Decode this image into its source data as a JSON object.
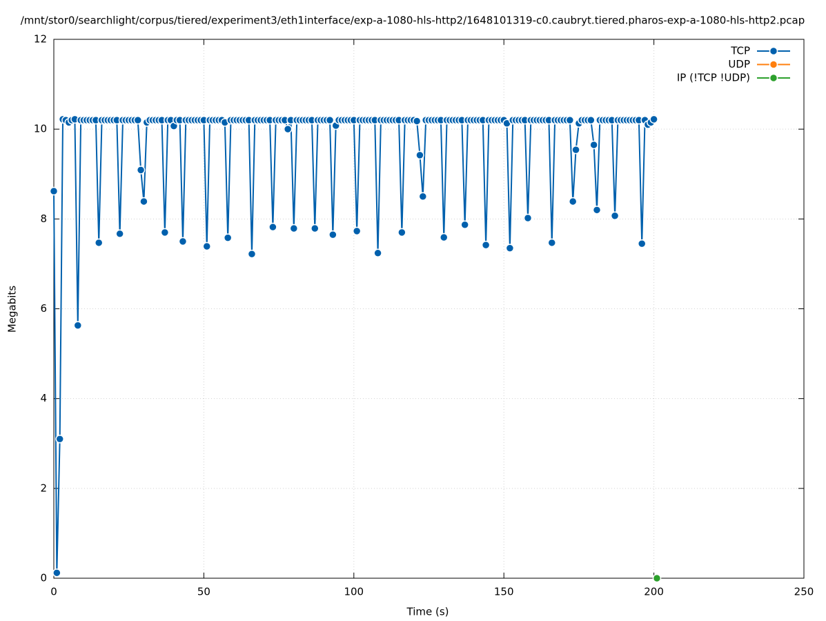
{
  "chart_data": {
    "type": "line",
    "title": "/mnt/stor0/searchlight/corpus/tiered/experiment3/eth1interface/exp-a-1080-hls-http2/1648101319-c0.caubryt.tiered.pharos-exp-a-1080-hls-http2.pcap",
    "xlabel": "Time (s)",
    "ylabel": "Megabits",
    "xlim": [
      0,
      250
    ],
    "xticks": [
      0,
      50,
      100,
      150,
      200,
      250
    ],
    "ylim": [
      0,
      12
    ],
    "yticks": [
      0,
      2,
      4,
      6,
      8,
      10,
      12
    ],
    "grid": true,
    "legend": "top-right",
    "series": [
      {
        "name": "TCP",
        "color": "#0060ad",
        "x": [
          0,
          1,
          2,
          3,
          4,
          5,
          6,
          7,
          8,
          9,
          10,
          11,
          12,
          13,
          14,
          15,
          16,
          17,
          18,
          19,
          20,
          21,
          22,
          23,
          24,
          25,
          26,
          27,
          28,
          29,
          30,
          31,
          32,
          33,
          34,
          35,
          36,
          37,
          38,
          39,
          40,
          41,
          42,
          43,
          44,
          45,
          46,
          47,
          48,
          49,
          50,
          51,
          52,
          53,
          54,
          55,
          56,
          57,
          58,
          59,
          60,
          61,
          62,
          63,
          64,
          65,
          66,
          67,
          68,
          69,
          70,
          71,
          72,
          73,
          74,
          75,
          76,
          77,
          78,
          79,
          80,
          81,
          82,
          83,
          84,
          85,
          86,
          87,
          88,
          89,
          90,
          91,
          92,
          93,
          94,
          95,
          96,
          97,
          98,
          99,
          100,
          101,
          102,
          103,
          104,
          105,
          106,
          107,
          108,
          109,
          110,
          111,
          112,
          113,
          114,
          115,
          116,
          117,
          118,
          119,
          120,
          121,
          122,
          123,
          124,
          125,
          126,
          127,
          128,
          129,
          130,
          131,
          132,
          133,
          134,
          135,
          136,
          137,
          138,
          139,
          140,
          141,
          142,
          143,
          144,
          145,
          146,
          147,
          148,
          149,
          150,
          151,
          152,
          153,
          154,
          155,
          156,
          157,
          158,
          159,
          160,
          161,
          162,
          163,
          164,
          165,
          166,
          167,
          168,
          169,
          170,
          171,
          172,
          173,
          174,
          175,
          176,
          177,
          178,
          179,
          180,
          181,
          182,
          183,
          184,
          185,
          186,
          187,
          188,
          189,
          190,
          191,
          192,
          193,
          194,
          195,
          196,
          197,
          198,
          199,
          200
        ],
        "values": [
          8.62,
          0.12,
          3.1,
          10.22,
          10.2,
          10.15,
          10.2,
          10.22,
          5.63,
          10.2,
          10.2,
          10.2,
          10.2,
          10.2,
          10.2,
          7.47,
          10.2,
          10.2,
          10.2,
          10.2,
          10.2,
          10.2,
          7.67,
          10.2,
          10.2,
          10.2,
          10.2,
          10.2,
          10.2,
          9.09,
          8.39,
          10.15,
          10.2,
          10.2,
          10.2,
          10.2,
          10.2,
          7.7,
          10.2,
          10.2,
          10.07,
          10.2,
          10.2,
          7.5,
          10.2,
          10.2,
          10.2,
          10.2,
          10.2,
          10.2,
          10.2,
          7.39,
          10.2,
          10.2,
          10.2,
          10.2,
          10.2,
          10.15,
          7.58,
          10.2,
          10.2,
          10.2,
          10.2,
          10.2,
          10.2,
          10.2,
          7.22,
          10.2,
          10.2,
          10.2,
          10.2,
          10.2,
          10.2,
          7.82,
          10.2,
          10.2,
          10.2,
          10.2,
          10.0,
          10.2,
          7.79,
          10.2,
          10.2,
          10.2,
          10.2,
          10.2,
          10.2,
          7.79,
          10.2,
          10.2,
          10.2,
          10.2,
          10.2,
          7.65,
          10.08,
          10.2,
          10.2,
          10.2,
          10.2,
          10.2,
          10.2,
          7.73,
          10.2,
          10.2,
          10.2,
          10.2,
          10.2,
          10.2,
          7.24,
          10.2,
          10.2,
          10.2,
          10.2,
          10.2,
          10.2,
          10.2,
          7.7,
          10.2,
          10.2,
          10.2,
          10.2,
          10.18,
          9.42,
          8.5,
          10.2,
          10.2,
          10.2,
          10.2,
          10.2,
          10.2,
          7.59,
          10.2,
          10.2,
          10.2,
          10.2,
          10.2,
          10.2,
          7.87,
          10.2,
          10.2,
          10.2,
          10.2,
          10.2,
          10.2,
          7.42,
          10.2,
          10.2,
          10.2,
          10.2,
          10.2,
          10.2,
          10.13,
          7.35,
          10.2,
          10.2,
          10.2,
          10.2,
          10.2,
          8.02,
          10.2,
          10.2,
          10.2,
          10.2,
          10.2,
          10.2,
          10.2,
          7.47,
          10.2,
          10.2,
          10.2,
          10.2,
          10.2,
          10.2,
          8.39,
          9.54,
          10.13,
          10.2,
          10.2,
          10.2,
          10.2,
          9.65,
          8.2,
          10.2,
          10.2,
          10.2,
          10.2,
          10.2,
          8.07,
          10.2,
          10.2,
          10.2,
          10.2,
          10.2,
          10.2,
          10.2,
          10.2,
          7.45,
          10.2,
          10.1,
          10.15,
          10.22
        ]
      },
      {
        "name": "UDP",
        "color": "#ff7f0e",
        "x": [],
        "values": []
      },
      {
        "name": "IP (!TCP  !UDP)",
        "color": "#2ca02c",
        "x": [
          201
        ],
        "values": [
          0
        ]
      }
    ]
  }
}
